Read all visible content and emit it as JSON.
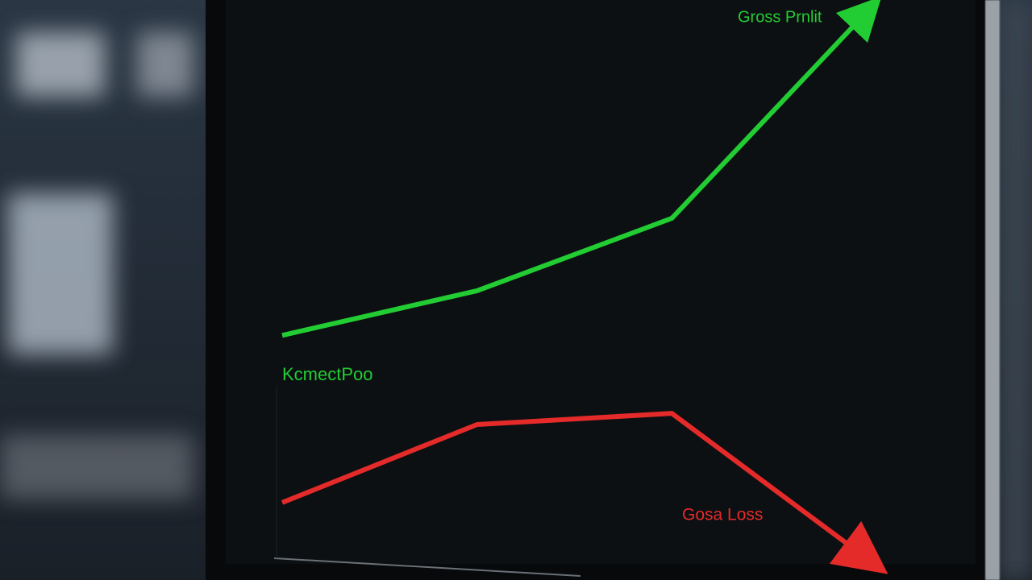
{
  "chart_data": {
    "type": "line",
    "categories": [
      null,
      null,
      null,
      null
    ],
    "series": [
      {
        "name": "Gross Prnlit",
        "color": "#22cc33",
        "values": [
          41,
          49,
          62,
          99
        ]
      },
      {
        "name": "Gosa Loss",
        "color": "#e52a2a",
        "values": [
          11,
          25,
          27,
          1
        ]
      }
    ],
    "annotations": [
      "KcmectPoo"
    ],
    "ylim": [
      0,
      100
    ]
  }
}
